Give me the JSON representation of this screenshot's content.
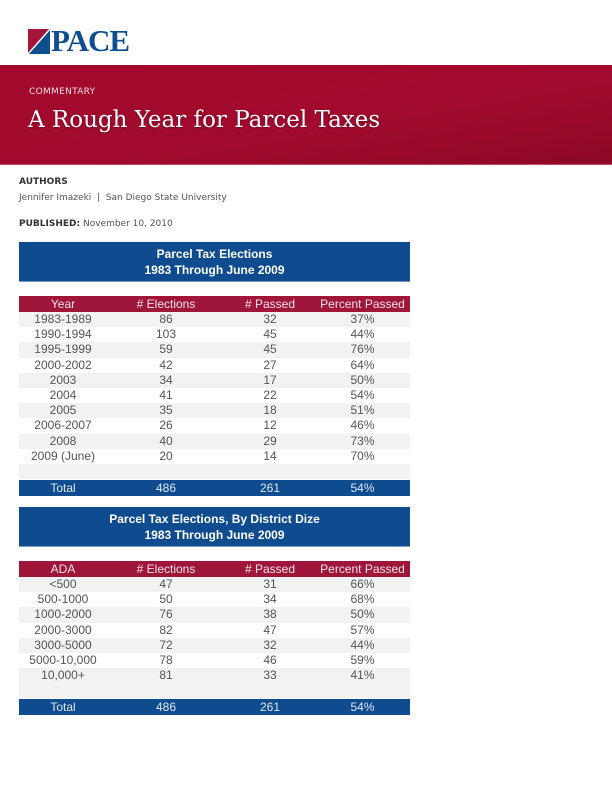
{
  "logo": {
    "text": "PACE",
    "colors": {
      "red": "#a3163c",
      "blue": "#0e4d8e"
    }
  },
  "banner": {
    "kicker": "COMMENTARY",
    "title": "A Rough Year for Parcel Taxes",
    "color": "#a3092c"
  },
  "authors": {
    "heading": "AUTHORS",
    "name": "Jennifer Imazeki",
    "separator": "|",
    "affiliation": "San Diego State University"
  },
  "published": {
    "label": "PUBLISHED:",
    "date": "November 10, 2010"
  },
  "tables": [
    {
      "title1": "Parcel Tax Elections",
      "title2": "1983 Through June 2009",
      "headers": [
        "Year",
        "# Elections",
        "# Passed",
        "Percent Passed"
      ],
      "rows": [
        [
          "1983-1989",
          "86",
          "32",
          "37%"
        ],
        [
          "1990-1994",
          "103",
          "45",
          "44%"
        ],
        [
          "1995-1999",
          "59",
          "45",
          "76%"
        ],
        [
          "2000-2002",
          "42",
          "27",
          "64%"
        ],
        [
          "2003",
          "34",
          "17",
          "50%"
        ],
        [
          "2004",
          "41",
          "22",
          "54%"
        ],
        [
          "2005",
          "35",
          "18",
          "51%"
        ],
        [
          "2006-2007",
          "26",
          "12",
          "46%"
        ],
        [
          "2008",
          "40",
          "29",
          "73%"
        ],
        [
          "2009 (June)",
          "20",
          "14",
          "70%"
        ]
      ],
      "total": [
        "Total",
        "486",
        "261",
        "54%"
      ]
    },
    {
      "title1": "Parcel Tax Elections, By District Dize",
      "title2": "1983 Through June 2009",
      "headers": [
        "ADA",
        "# Elections",
        "# Passed",
        "Percent Passed"
      ],
      "rows": [
        [
          "<500",
          "47",
          "31",
          "66%"
        ],
        [
          "500-1000",
          "50",
          "34",
          "68%"
        ],
        [
          "1000-2000",
          "76",
          "38",
          "50%"
        ],
        [
          "2000-3000",
          "82",
          "47",
          "57%"
        ],
        [
          "3000-5000",
          "72",
          "32",
          "44%"
        ],
        [
          "5000-10,000",
          "78",
          "46",
          "59%"
        ],
        [
          "10,000+",
          "81",
          "33",
          "41%"
        ]
      ],
      "total": [
        "Total",
        "486",
        "261",
        "54%"
      ]
    }
  ]
}
